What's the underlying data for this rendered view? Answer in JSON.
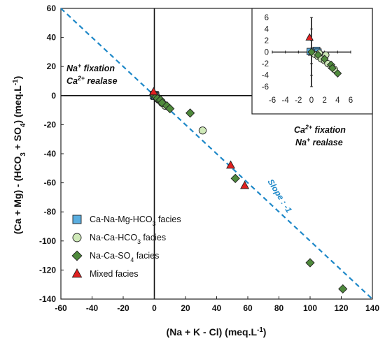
{
  "chart_data": [
    {
      "type": "scatter",
      "xlabel_parts": [
        "(Na + K - Cl)  (meq.L",
        "-1",
        ")"
      ],
      "ylabel_parts": [
        "(Ca + Mg) - (HCO",
        "3",
        " + SO",
        "4",
        ")    (meq.L",
        "-1",
        ")"
      ],
      "xlim": [
        -60,
        140
      ],
      "ylim": [
        -140,
        60
      ],
      "xticks": [
        "-60",
        "-40",
        "-20",
        "0",
        "20",
        "40",
        "60",
        "80",
        "100",
        "120",
        "140"
      ],
      "yticks": [
        "60",
        "40",
        "20",
        "0",
        "-20",
        "-40",
        "-60",
        "-80",
        "-100",
        "-120",
        "-140"
      ],
      "reference_line": {
        "slope": -1,
        "intercept": 0,
        "style": "dashed",
        "color": "#1e88c8",
        "label": "Slope : -1"
      },
      "annotations": [
        {
          "lines": [
            [
              "Na",
              "+",
              " fixation"
            ],
            [
              "Ca",
              "2+",
              " realase"
            ]
          ]
        },
        {
          "lines": [
            [
              "Ca",
              "2+",
              " fixation"
            ],
            [
              "Na",
              "+",
              " realase"
            ]
          ]
        }
      ],
      "legend": {
        "position": "bottom-left"
      },
      "series": [
        {
          "name_parts": [
            "Ca-Na-Mg-HCO",
            "3",
            " facies"
          ],
          "marker": "square",
          "color": "#5aaee0",
          "points": [
            [
              0,
              0
            ],
            [
              0.3,
              0.4
            ],
            [
              -0.4,
              0.5
            ],
            [
              0.6,
              -0.3
            ]
          ]
        },
        {
          "name_parts": [
            "Na-Ca-HCO",
            "3",
            " facies"
          ],
          "marker": "circle",
          "color": "#cfe9b8",
          "points": [
            [
              0.5,
              0
            ],
            [
              1.5,
              -1
            ],
            [
              3,
              -3
            ],
            [
              5,
              -5
            ],
            [
              7,
              -7
            ],
            [
              31,
              -24
            ],
            [
              1,
              -0.5
            ],
            [
              2,
              -2
            ]
          ]
        },
        {
          "name_parts": [
            "Na-Ca-SO",
            "4",
            " facies"
          ],
          "marker": "diamond",
          "color": "#4f8a3c",
          "points": [
            [
              0,
              0
            ],
            [
              1,
              -1
            ],
            [
              2,
              -2
            ],
            [
              4,
              -3
            ],
            [
              5,
              -5
            ],
            [
              8,
              -7
            ],
            [
              10,
              -9
            ],
            [
              23,
              -12
            ],
            [
              52,
              -57
            ],
            [
              100,
              -115
            ],
            [
              121,
              -133
            ]
          ]
        },
        {
          "name_parts": [
            "Mixed facies"
          ],
          "marker": "triangle",
          "color": "#e02020",
          "points": [
            [
              -0.5,
              2.5
            ],
            [
              49,
              -48
            ],
            [
              58,
              -62
            ]
          ]
        }
      ]
    },
    {
      "type": "scatter",
      "title": "",
      "xlim": [
        -6,
        6
      ],
      "ylim": [
        -6,
        6
      ],
      "xticks": [
        "-6",
        "-4",
        "-2",
        "0",
        "2",
        "4",
        "6"
      ],
      "yticks": [
        "6",
        "4",
        "2",
        "0",
        "-2",
        "-4",
        "-6"
      ],
      "series": [
        {
          "marker": "square",
          "color": "#5aaee0",
          "points": [
            [
              0,
              0
            ],
            [
              0.4,
              0.2
            ],
            [
              0.8,
              0.3
            ],
            [
              -0.2,
              0.1
            ],
            [
              1,
              0
            ]
          ]
        },
        {
          "marker": "circle",
          "color": "#cfe9b8",
          "points": [
            [
              0.5,
              -0.4
            ],
            [
              1,
              -0.8
            ],
            [
              1.5,
              -1.2
            ],
            [
              2,
              -1.5
            ],
            [
              2.5,
              -2
            ],
            [
              3,
              -2.5
            ],
            [
              3.5,
              -3
            ],
            [
              2.2,
              -0.5
            ],
            [
              1.2,
              -0.2
            ]
          ]
        },
        {
          "marker": "diamond",
          "color": "#4f8a3c",
          "points": [
            [
              0,
              0
            ],
            [
              1,
              -0.5
            ],
            [
              2,
              -1.2
            ],
            [
              3,
              -2.2
            ],
            [
              4,
              -3.7
            ],
            [
              3.2,
              -2.8
            ]
          ]
        },
        {
          "marker": "triangle",
          "color": "#e02020",
          "points": [
            [
              -0.3,
              2.5
            ]
          ]
        }
      ]
    }
  ]
}
